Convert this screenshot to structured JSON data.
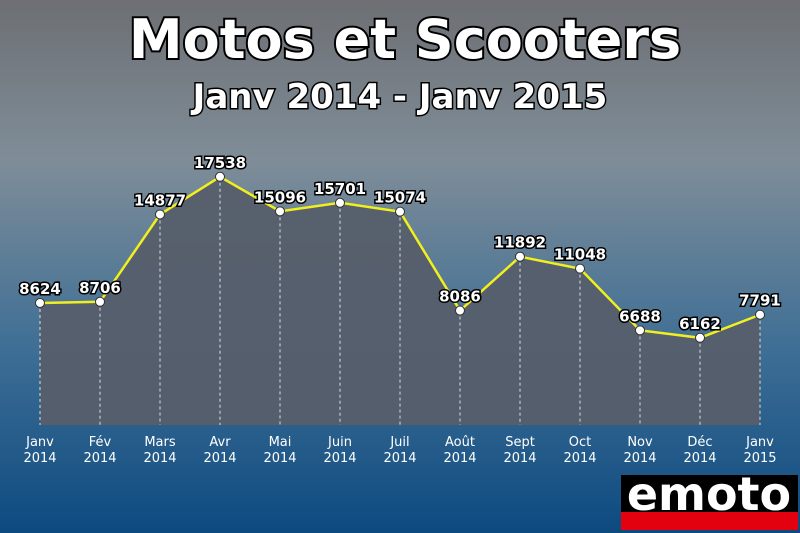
{
  "chart_data": {
    "type": "area-line",
    "title": "Motos et Scooters",
    "subtitle": "Janv 2014 - Janv 2015",
    "categories": [
      "Janv 2014",
      "Fév 2014",
      "Mars 2014",
      "Avr 2014",
      "Mai 2014",
      "Juin 2014",
      "Juil 2014",
      "Août 2014",
      "Sept 2014",
      "Oct 2014",
      "Nov 2014",
      "Déc 2014",
      "Janv 2015"
    ],
    "values": [
      8624,
      8706,
      14877,
      17538,
      15096,
      15701,
      15074,
      8086,
      11892,
      11048,
      6688,
      6162,
      7791
    ],
    "color": "#f2ef1f",
    "area_color": "#565e6a",
    "logo": "emoto"
  }
}
